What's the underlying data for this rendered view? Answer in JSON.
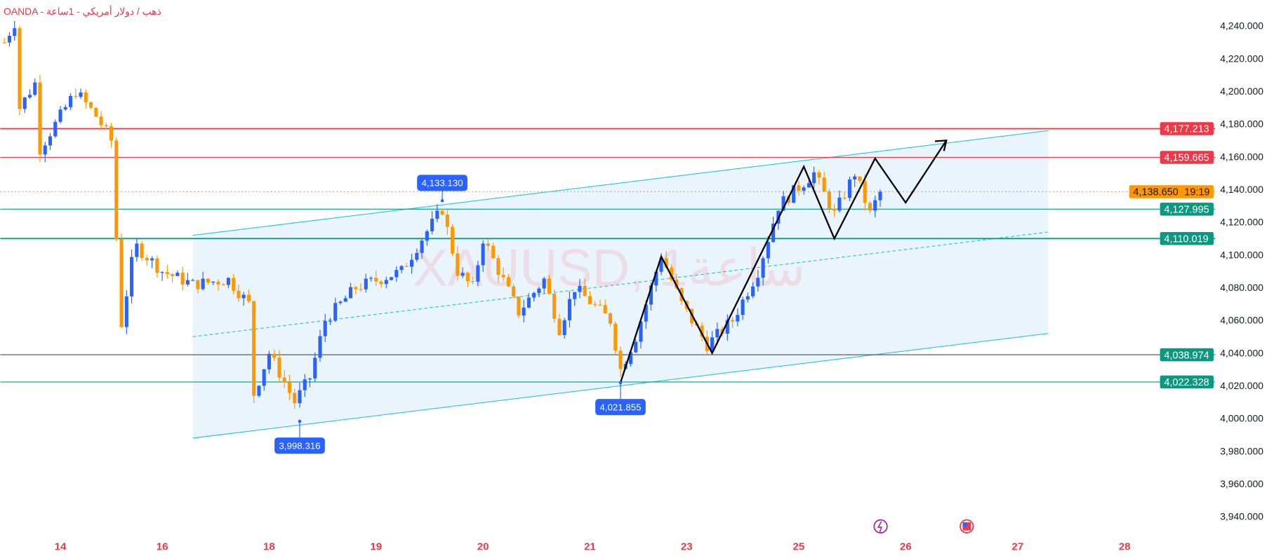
{
  "header": {
    "title": "OANDA - ذهب / دولار أمريكي - 1ساعة"
  },
  "watermark": "XAUUSD, 1ساعة",
  "colors": {
    "up": "#2962ff",
    "down": "#ff9800",
    "resistance": "#f23645",
    "support": "#089981",
    "channel": "#26c6da",
    "channel_fill": "#e3f0fc"
  },
  "chart_data": {
    "type": "candlestick",
    "symbol": "XAUUSD",
    "timeframe": "1H",
    "ylim": [
      3930,
      4250
    ],
    "y_ticks": [
      4240,
      4220,
      4200,
      4180,
      4160,
      4140,
      4120,
      4100,
      4080,
      4060,
      4040,
      4020,
      4000,
      3980,
      3960,
      3940
    ],
    "y_tick_labels": [
      "4,240.000",
      "4,220.000",
      "4,200.000",
      "4,180.000",
      "4,160.000",
      "4,140.000",
      "4,120.000",
      "4,100.000",
      "4,080.000",
      "4,060.000",
      "4,040.000",
      "4,020.000",
      "4,000.000",
      "3,980.000",
      "3,960.000",
      "3,940.000"
    ],
    "x_ticks": [
      {
        "label": "14",
        "bar": 11
      },
      {
        "label": "16",
        "bar": 31
      },
      {
        "label": "18",
        "bar": 52
      },
      {
        "label": "19",
        "bar": 73
      },
      {
        "label": "20",
        "bar": 94
      },
      {
        "label": "21",
        "bar": 115
      },
      {
        "label": "23",
        "bar": 134
      },
      {
        "label": "25",
        "bar": 156
      },
      {
        "label": "26",
        "bar": 177
      },
      {
        "label": "27",
        "bar": 199
      },
      {
        "label": "28",
        "bar": 220
      }
    ],
    "price_path": [
      [
        0,
        4230
      ],
      [
        2,
        4242
      ],
      [
        3,
        4190
      ],
      [
        6,
        4205
      ],
      [
        7,
        4165
      ],
      [
        14,
        4200
      ],
      [
        18,
        4185
      ],
      [
        21,
        4170
      ],
      [
        22,
        4110
      ],
      [
        23,
        4058
      ],
      [
        25,
        4095
      ],
      [
        26,
        4105
      ],
      [
        31,
        4090
      ],
      [
        37,
        4082
      ],
      [
        44,
        4085
      ],
      [
        48,
        4070
      ],
      [
        49,
        4015
      ],
      [
        52,
        4040
      ],
      [
        57,
        4010
      ],
      [
        60,
        4025
      ],
      [
        63,
        4060
      ],
      [
        69,
        4080
      ],
      [
        78,
        4090
      ],
      [
        82,
        4110
      ],
      [
        86,
        4128
      ],
      [
        89,
        4090
      ],
      [
        92,
        4080
      ],
      [
        94,
        4110
      ],
      [
        101,
        4065
      ],
      [
        106,
        4085
      ],
      [
        109,
        4055
      ],
      [
        112,
        4080
      ],
      [
        119,
        4060
      ],
      [
        121,
        4030
      ],
      [
        124,
        4050
      ],
      [
        129,
        4100
      ],
      [
        133,
        4070
      ],
      [
        138,
        4045
      ],
      [
        143,
        4060
      ],
      [
        148,
        4090
      ],
      [
        152,
        4130
      ],
      [
        159,
        4150
      ],
      [
        163,
        4125
      ],
      [
        167,
        4150
      ],
      [
        170,
        4125
      ],
      [
        172,
        4138.65
      ]
    ],
    "horizontal_levels": [
      {
        "price": 4177.213,
        "label": "4,177.213",
        "kind": "resistance"
      },
      {
        "price": 4159.665,
        "label": "4,159.665",
        "kind": "resistance"
      },
      {
        "price": 4138.65,
        "label": "4,138.650",
        "kind": "current",
        "countdown": "19:19"
      },
      {
        "price": 4127.995,
        "label": "4,127.995",
        "kind": "support"
      },
      {
        "price": 4110.019,
        "label": "4,110.019",
        "kind": "support"
      },
      {
        "price": 4038.974,
        "label": "4,038.974",
        "kind": "support"
      },
      {
        "price": 4022.328,
        "label": "4,022.328",
        "kind": "support"
      }
    ],
    "annotations": [
      {
        "label": "4,133.130",
        "price": 4133.13,
        "bar": 86,
        "position": "above"
      },
      {
        "label": "3,998.316",
        "price": 3998.316,
        "bar": 58,
        "position": "below"
      },
      {
        "label": "4,021.855",
        "price": 4021.855,
        "bar": 121,
        "position": "below"
      }
    ],
    "channel": {
      "start_bar": 37,
      "end_bar": 205,
      "upper": [
        4112,
        4176
      ],
      "lower": [
        3988,
        4052
      ],
      "mid": [
        4050,
        4114
      ]
    },
    "projection_path": [
      [
        121,
        4021.855
      ],
      [
        129,
        4099
      ],
      [
        139,
        4040
      ],
      [
        157,
        4154
      ],
      [
        163,
        4110
      ],
      [
        171,
        4159
      ],
      [
        177,
        4132
      ],
      [
        185,
        4170
      ]
    ]
  }
}
